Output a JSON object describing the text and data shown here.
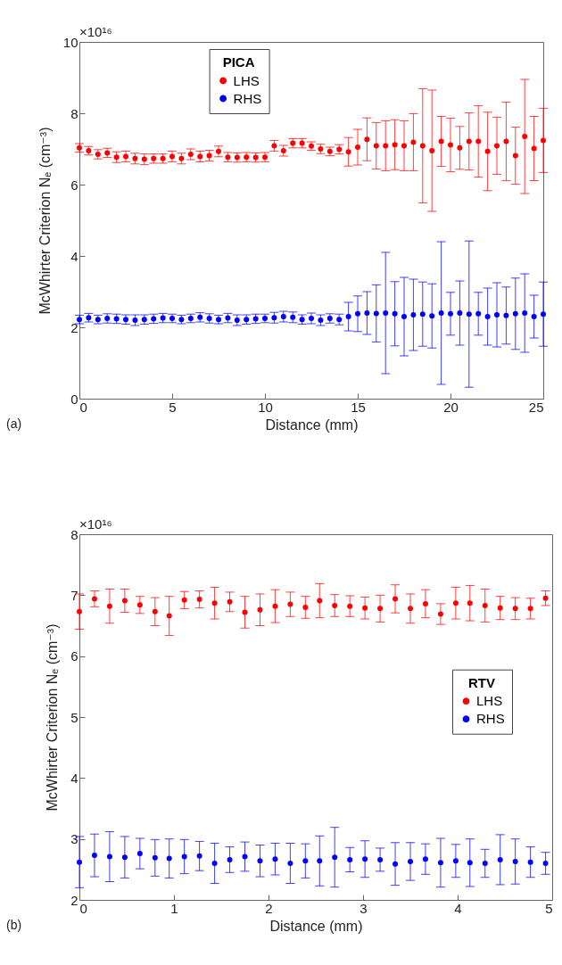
{
  "chart_data": [
    {
      "type": "scatter",
      "xlabel": "Distance (mm)",
      "ylabel": "McWhirter Criterion Nₑ (cm⁻³)",
      "legend_title": "PICA",
      "legend": "top",
      "marker": "circle",
      "grid": false,
      "xlim": [
        0,
        25
      ],
      "xticks": [
        0,
        5,
        10,
        15,
        20,
        25
      ],
      "ylim": [
        0,
        10
      ],
      "yticks": [
        0,
        2,
        4,
        6,
        8,
        10
      ],
      "annotations": [
        "×10¹⁶",
        "(a)"
      ],
      "x": [
        0,
        0.5,
        1,
        1.5,
        2,
        2.5,
        3,
        3.5,
        4,
        4.5,
        5,
        5.5,
        6,
        6.5,
        7,
        7.5,
        8,
        8.5,
        9,
        9.5,
        10,
        10.5,
        11,
        11.5,
        12,
        12.5,
        13,
        13.5,
        14,
        14.5,
        15,
        15.5,
        16,
        16.5,
        17,
        17.5,
        18,
        18.5,
        19,
        19.5,
        20,
        20.5,
        21,
        21.5,
        22,
        22.5,
        23,
        23.5,
        24,
        24.5,
        25
      ],
      "series": [
        {
          "name": "LHS",
          "color": "#ff0000",
          "values": [
            7.03,
            6.95,
            6.85,
            6.89,
            6.77,
            6.79,
            6.73,
            6.71,
            6.73,
            6.73,
            6.79,
            6.73,
            6.85,
            6.79,
            6.81,
            6.93,
            6.77,
            6.76,
            6.77,
            6.76,
            6.77,
            7.09,
            6.95,
            7.16,
            7.16,
            7.08,
            7.0,
            6.93,
            6.99,
            6.92,
            7.05,
            7.27,
            7.09,
            7.09,
            7.12,
            7.09,
            7.19,
            7.09,
            6.95,
            7.21,
            7.11,
            7.03,
            7.21,
            7.21,
            6.93,
            7.09,
            7.21,
            6.81,
            7.35,
            7.01,
            7.24
          ],
          "errors": [
            0.12,
            0.12,
            0.13,
            0.13,
            0.15,
            0.15,
            0.15,
            0.15,
            0.13,
            0.13,
            0.15,
            0.15,
            0.15,
            0.15,
            0.15,
            0.15,
            0.13,
            0.13,
            0.13,
            0.13,
            0.13,
            0.15,
            0.15,
            0.13,
            0.13,
            0.12,
            0.13,
            0.12,
            0.13,
            0.4,
            0.5,
            0.6,
            0.65,
            0.7,
            0.7,
            0.7,
            0.8,
            1.6,
            1.7,
            0.7,
            0.75,
            0.6,
            0.8,
            1.0,
            1.1,
            0.8,
            1.1,
            0.8,
            1.6,
            0.9,
            0.9
          ]
        },
        {
          "name": "RHS",
          "color": "#0000ff",
          "values": [
            2.22,
            2.27,
            2.22,
            2.25,
            2.24,
            2.22,
            2.2,
            2.22,
            2.24,
            2.26,
            2.25,
            2.22,
            2.25,
            2.28,
            2.25,
            2.22,
            2.26,
            2.2,
            2.22,
            2.24,
            2.25,
            2.27,
            2.3,
            2.28,
            2.22,
            2.25,
            2.2,
            2.25,
            2.22,
            2.3,
            2.38,
            2.4,
            2.39,
            2.4,
            2.38,
            2.3,
            2.35,
            2.37,
            2.32,
            2.4,
            2.38,
            2.4,
            2.37,
            2.38,
            2.3,
            2.35,
            2.33,
            2.38,
            2.4,
            2.3,
            2.37
          ],
          "errors": [
            0.12,
            0.12,
            0.12,
            0.13,
            0.13,
            0.13,
            0.15,
            0.13,
            0.13,
            0.13,
            0.12,
            0.12,
            0.12,
            0.13,
            0.13,
            0.12,
            0.13,
            0.15,
            0.13,
            0.13,
            0.12,
            0.15,
            0.15,
            0.15,
            0.13,
            0.15,
            0.15,
            0.13,
            0.15,
            0.4,
            0.5,
            0.6,
            0.8,
            1.7,
            0.9,
            1.1,
            1.0,
            0.9,
            0.9,
            2.0,
            0.6,
            0.9,
            2.05,
            0.6,
            0.8,
            0.9,
            0.8,
            1.0,
            1.1,
            0.6,
            0.9
          ]
        }
      ]
    },
    {
      "type": "scatter",
      "xlabel": "Distance (mm)",
      "ylabel": "McWhirter Criterion Nₑ (cm⁻³)",
      "legend_title": "RTV",
      "legend": "right",
      "marker": "circle",
      "grid": false,
      "xlim": [
        0,
        5
      ],
      "xticks": [
        0,
        1,
        2,
        3,
        4,
        5
      ],
      "ylim": [
        2,
        8
      ],
      "yticks": [
        2,
        3,
        4,
        5,
        6,
        7,
        8
      ],
      "annotations": [
        "×10¹⁶",
        "(b)"
      ],
      "x": [
        0,
        0.16,
        0.32,
        0.48,
        0.64,
        0.8,
        0.95,
        1.11,
        1.27,
        1.43,
        1.59,
        1.75,
        1.91,
        2.07,
        2.23,
        2.39,
        2.54,
        2.7,
        2.86,
        3.02,
        3.18,
        3.34,
        3.5,
        3.66,
        3.82,
        3.98,
        4.13,
        4.29,
        4.45,
        4.61,
        4.77,
        4.93
      ],
      "series": [
        {
          "name": "LHS",
          "color": "#ff0000",
          "values": [
            6.73,
            6.94,
            6.82,
            6.91,
            6.84,
            6.73,
            6.66,
            6.92,
            6.93,
            6.87,
            6.89,
            6.72,
            6.76,
            6.82,
            6.85,
            6.8,
            6.91,
            6.83,
            6.82,
            6.79,
            6.78,
            6.94,
            6.78,
            6.86,
            6.69,
            6.87,
            6.87,
            6.83,
            6.79,
            6.78,
            6.78,
            6.95
          ],
          "errors": [
            0.29,
            0.13,
            0.28,
            0.19,
            0.14,
            0.23,
            0.32,
            0.14,
            0.14,
            0.26,
            0.16,
            0.26,
            0.26,
            0.27,
            0.2,
            0.18,
            0.28,
            0.18,
            0.17,
            0.18,
            0.22,
            0.23,
            0.24,
            0.23,
            0.17,
            0.26,
            0.29,
            0.27,
            0.19,
            0.18,
            0.17,
            0.12
          ]
        },
        {
          "name": "RHS",
          "color": "#0000ff",
          "values": [
            2.62,
            2.73,
            2.71,
            2.7,
            2.76,
            2.69,
            2.68,
            2.71,
            2.72,
            2.6,
            2.66,
            2.71,
            2.64,
            2.67,
            2.6,
            2.64,
            2.64,
            2.7,
            2.66,
            2.67,
            2.66,
            2.59,
            2.63,
            2.67,
            2.61,
            2.64,
            2.61,
            2.6,
            2.66,
            2.63,
            2.62,
            2.6
          ],
          "errors": [
            0.42,
            0.35,
            0.41,
            0.34,
            0.25,
            0.3,
            0.32,
            0.28,
            0.24,
            0.33,
            0.21,
            0.24,
            0.26,
            0.26,
            0.33,
            0.28,
            0.41,
            0.49,
            0.2,
            0.3,
            0.19,
            0.35,
            0.31,
            0.25,
            0.4,
            0.27,
            0.39,
            0.23,
            0.41,
            0.37,
            0.25,
            0.18
          ]
        }
      ]
    }
  ]
}
